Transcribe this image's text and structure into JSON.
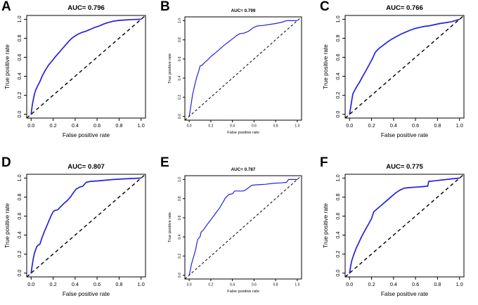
{
  "figure": {
    "background": "#ffffff",
    "curve_color": "#2222e0",
    "diagonal_color": "#000000",
    "axis_color": "#000000"
  },
  "chart_data": [
    {
      "type": "line",
      "panel_label": "A",
      "title": "AUC= 0.796",
      "auc": 0.796,
      "xlabel": "False positive rate",
      "ylabel": "True positive rate",
      "xlim": [
        0,
        1
      ],
      "ylim": [
        0,
        1
      ],
      "xticks": [
        "0.0",
        "0.2",
        "0.4",
        "0.6",
        "0.8",
        "1.0"
      ],
      "yticks": [
        "0.0",
        "0.2",
        "0.4",
        "0.6",
        "0.8",
        "1.0"
      ],
      "grid": false,
      "legend": "none",
      "series": [
        {
          "name": "ROC curve",
          "color": "#2222e0",
          "style": "solid",
          "points": [
            [
              0,
              0
            ],
            [
              0.01,
              0.09
            ],
            [
              0.02,
              0.155
            ],
            [
              0.03,
              0.21
            ],
            [
              0.04,
              0.25
            ],
            [
              0.06,
              0.3
            ],
            [
              0.08,
              0.345
            ],
            [
              0.1,
              0.4
            ],
            [
              0.13,
              0.465
            ],
            [
              0.16,
              0.52
            ],
            [
              0.19,
              0.56
            ],
            [
              0.22,
              0.605
            ],
            [
              0.25,
              0.645
            ],
            [
              0.28,
              0.685
            ],
            [
              0.31,
              0.725
            ],
            [
              0.34,
              0.765
            ],
            [
              0.37,
              0.8
            ],
            [
              0.4,
              0.825
            ],
            [
              0.43,
              0.845
            ],
            [
              0.46,
              0.86
            ],
            [
              0.5,
              0.875
            ],
            [
              0.54,
              0.895
            ],
            [
              0.58,
              0.915
            ],
            [
              0.62,
              0.93
            ],
            [
              0.66,
              0.95
            ],
            [
              0.7,
              0.965
            ],
            [
              0.75,
              0.98
            ],
            [
              0.8,
              0.988
            ],
            [
              0.86,
              0.993
            ],
            [
              0.92,
              0.997
            ],
            [
              1,
              1
            ]
          ]
        },
        {
          "name": "reference diagonal",
          "color": "#000000",
          "style": "dashed",
          "points": [
            [
              0,
              0
            ],
            [
              1,
              1
            ]
          ]
        }
      ]
    },
    {
      "type": "line",
      "panel_label": "B",
      "title": "AUC= 0.799",
      "auc": 0.799,
      "xlabel": "False positive rate",
      "ylabel": "True positive rate",
      "xlim": [
        0,
        1
      ],
      "ylim": [
        0,
        1
      ],
      "xticks": [
        "0.0",
        "0.2",
        "0.4",
        "0.6",
        "0.8",
        "1.0"
      ],
      "yticks": [
        "0.0",
        "0.2",
        "0.4",
        "0.6",
        "0.8",
        "1.0"
      ],
      "grid": false,
      "legend": "none",
      "series": [
        {
          "name": "ROC curve",
          "color": "#2222e0",
          "style": "solid",
          "points": [
            [
              0,
              0
            ],
            [
              0.01,
              0.07
            ],
            [
              0.02,
              0.14
            ],
            [
              0.03,
              0.22
            ],
            [
              0.05,
              0.32
            ],
            [
              0.07,
              0.41
            ],
            [
              0.09,
              0.48
            ],
            [
              0.1,
              0.525
            ],
            [
              0.12,
              0.535
            ],
            [
              0.14,
              0.56
            ],
            [
              0.17,
              0.59
            ],
            [
              0.2,
              0.625
            ],
            [
              0.24,
              0.66
            ],
            [
              0.28,
              0.7
            ],
            [
              0.32,
              0.74
            ],
            [
              0.36,
              0.775
            ],
            [
              0.4,
              0.81
            ],
            [
              0.44,
              0.845
            ],
            [
              0.47,
              0.865
            ],
            [
              0.51,
              0.87
            ],
            [
              0.55,
              0.89
            ],
            [
              0.59,
              0.925
            ],
            [
              0.63,
              0.945
            ],
            [
              0.68,
              0.95
            ],
            [
              0.74,
              0.96
            ],
            [
              0.8,
              0.97
            ],
            [
              0.86,
              0.985
            ],
            [
              0.9,
              1.0
            ],
            [
              1,
              1
            ]
          ]
        },
        {
          "name": "reference diagonal",
          "color": "#000000",
          "style": "dashed",
          "points": [
            [
              0,
              0
            ],
            [
              1,
              1
            ]
          ]
        }
      ]
    },
    {
      "type": "line",
      "panel_label": "C",
      "title": "AUC= 0.766",
      "auc": 0.766,
      "xlabel": "False positive rate",
      "ylabel": "True positive rate",
      "xlim": [
        0,
        1
      ],
      "ylim": [
        0,
        1
      ],
      "xticks": [
        "0.0",
        "0.2",
        "0.4",
        "0.6",
        "0.8",
        "1.0"
      ],
      "yticks": [
        "0.0",
        "0.2",
        "0.4",
        "0.6",
        "0.8",
        "1.0"
      ],
      "grid": false,
      "legend": "none",
      "series": [
        {
          "name": "ROC curve",
          "color": "#2222e0",
          "style": "solid",
          "points": [
            [
              0,
              0
            ],
            [
              0.01,
              0.07
            ],
            [
              0.02,
              0.145
            ],
            [
              0.03,
              0.215
            ],
            [
              0.05,
              0.26
            ],
            [
              0.07,
              0.3
            ],
            [
              0.09,
              0.335
            ],
            [
              0.12,
              0.4
            ],
            [
              0.15,
              0.46
            ],
            [
              0.18,
              0.525
            ],
            [
              0.21,
              0.59
            ],
            [
              0.23,
              0.645
            ],
            [
              0.24,
              0.66
            ],
            [
              0.27,
              0.695
            ],
            [
              0.31,
              0.73
            ],
            [
              0.35,
              0.765
            ],
            [
              0.39,
              0.795
            ],
            [
              0.43,
              0.82
            ],
            [
              0.47,
              0.845
            ],
            [
              0.51,
              0.865
            ],
            [
              0.55,
              0.885
            ],
            [
              0.6,
              0.905
            ],
            [
              0.64,
              0.915
            ],
            [
              0.68,
              0.925
            ],
            [
              0.72,
              0.93
            ],
            [
              0.76,
              0.94
            ],
            [
              0.82,
              0.955
            ],
            [
              0.88,
              0.965
            ],
            [
              0.93,
              0.975
            ],
            [
              1,
              1
            ]
          ]
        },
        {
          "name": "reference diagonal",
          "color": "#000000",
          "style": "dashed",
          "points": [
            [
              0,
              0
            ],
            [
              1,
              1
            ]
          ]
        }
      ]
    },
    {
      "type": "line",
      "panel_label": "D",
      "title": "AUC= 0.807",
      "auc": 0.807,
      "xlabel": "False positive rate",
      "ylabel": "True positive rate",
      "xlim": [
        0,
        1
      ],
      "ylim": [
        0,
        1
      ],
      "xticks": [
        "0.0",
        "0.2",
        "0.4",
        "0.6",
        "0.8",
        "1.0"
      ],
      "yticks": [
        "0.0",
        "0.2",
        "0.4",
        "0.6",
        "0.8",
        "1.0"
      ],
      "grid": false,
      "legend": "none",
      "series": [
        {
          "name": "ROC curve",
          "color": "#2222e0",
          "style": "solid",
          "points": [
            [
              0,
              0
            ],
            [
              0.01,
              0.08
            ],
            [
              0.02,
              0.155
            ],
            [
              0.03,
              0.21
            ],
            [
              0.05,
              0.275
            ],
            [
              0.06,
              0.29
            ],
            [
              0.08,
              0.305
            ],
            [
              0.1,
              0.375
            ],
            [
              0.12,
              0.435
            ],
            [
              0.14,
              0.49
            ],
            [
              0.16,
              0.545
            ],
            [
              0.18,
              0.6
            ],
            [
              0.2,
              0.645
            ],
            [
              0.215,
              0.66
            ],
            [
              0.24,
              0.665
            ],
            [
              0.27,
              0.7
            ],
            [
              0.3,
              0.735
            ],
            [
              0.33,
              0.765
            ],
            [
              0.36,
              0.805
            ],
            [
              0.39,
              0.855
            ],
            [
              0.41,
              0.885
            ],
            [
              0.44,
              0.905
            ],
            [
              0.47,
              0.915
            ],
            [
              0.5,
              0.955
            ],
            [
              0.54,
              0.965
            ],
            [
              0.6,
              0.97
            ],
            [
              0.67,
              0.977
            ],
            [
              0.75,
              0.985
            ],
            [
              0.85,
              0.992
            ],
            [
              1,
              1
            ]
          ]
        },
        {
          "name": "reference diagonal",
          "color": "#000000",
          "style": "dashed",
          "points": [
            [
              0,
              0
            ],
            [
              1,
              1
            ]
          ]
        }
      ]
    },
    {
      "type": "line",
      "panel_label": "E",
      "title": "AUC= 0.787",
      "auc": 0.787,
      "xlabel": "False positive rate",
      "ylabel": "True positive rate",
      "xlim": [
        0,
        1
      ],
      "ylim": [
        0,
        1
      ],
      "xticks": [
        "0.0",
        "0.2",
        "0.4",
        "0.6",
        "0.8",
        "1.0"
      ],
      "yticks": [
        "0.0",
        "0.2",
        "0.4",
        "0.6",
        "0.8",
        "1.0"
      ],
      "grid": false,
      "legend": "none",
      "series": [
        {
          "name": "ROC curve",
          "color": "#2222e0",
          "style": "solid",
          "points": [
            [
              0,
              0
            ],
            [
              0.01,
              0.05
            ],
            [
              0.02,
              0.11
            ],
            [
              0.04,
              0.19
            ],
            [
              0.06,
              0.27
            ],
            [
              0.07,
              0.33
            ],
            [
              0.08,
              0.375
            ],
            [
              0.1,
              0.4
            ],
            [
              0.11,
              0.45
            ],
            [
              0.13,
              0.47
            ],
            [
              0.16,
              0.52
            ],
            [
              0.19,
              0.565
            ],
            [
              0.22,
              0.61
            ],
            [
              0.25,
              0.655
            ],
            [
              0.28,
              0.7
            ],
            [
              0.3,
              0.74
            ],
            [
              0.32,
              0.775
            ],
            [
              0.33,
              0.8
            ],
            [
              0.35,
              0.825
            ],
            [
              0.37,
              0.845
            ],
            [
              0.4,
              0.85
            ],
            [
              0.42,
              0.88
            ],
            [
              0.46,
              0.88
            ],
            [
              0.5,
              0.88
            ],
            [
              0.52,
              0.89
            ],
            [
              0.55,
              0.915
            ],
            [
              0.58,
              0.94
            ],
            [
              0.63,
              0.945
            ],
            [
              0.7,
              0.95
            ],
            [
              0.78,
              0.96
            ],
            [
              0.85,
              0.965
            ],
            [
              0.9,
              0.97
            ],
            [
              0.92,
              1.0
            ],
            [
              1,
              1
            ]
          ]
        },
        {
          "name": "reference diagonal",
          "color": "#000000",
          "style": "dashed",
          "points": [
            [
              0,
              0
            ],
            [
              1,
              1
            ]
          ]
        }
      ]
    },
    {
      "type": "line",
      "panel_label": "F",
      "title": "AUC= 0.775",
      "auc": 0.775,
      "xlabel": "False positive rate",
      "ylabel": "True positive rate",
      "xlim": [
        0,
        1
      ],
      "ylim": [
        0,
        1
      ],
      "xticks": [
        "0.0",
        "0.2",
        "0.4",
        "0.6",
        "0.8",
        "1.0"
      ],
      "yticks": [
        "0.0",
        "0.2",
        "0.4",
        "0.6",
        "0.8",
        "1.0"
      ],
      "grid": false,
      "legend": "none",
      "series": [
        {
          "name": "ROC curve",
          "color": "#2222e0",
          "style": "solid",
          "points": [
            [
              0,
              0
            ],
            [
              0.01,
              0.07
            ],
            [
              0.02,
              0.13
            ],
            [
              0.04,
              0.2
            ],
            [
              0.06,
              0.26
            ],
            [
              0.08,
              0.31
            ],
            [
              0.11,
              0.385
            ],
            [
              0.14,
              0.45
            ],
            [
              0.17,
              0.51
            ],
            [
              0.2,
              0.575
            ],
            [
              0.22,
              0.645
            ],
            [
              0.23,
              0.655
            ],
            [
              0.26,
              0.685
            ],
            [
              0.3,
              0.725
            ],
            [
              0.34,
              0.765
            ],
            [
              0.38,
              0.805
            ],
            [
              0.42,
              0.845
            ],
            [
              0.46,
              0.875
            ],
            [
              0.5,
              0.895
            ],
            [
              0.55,
              0.9
            ],
            [
              0.6,
              0.905
            ],
            [
              0.66,
              0.91
            ],
            [
              0.71,
              0.915
            ],
            [
              0.72,
              0.965
            ],
            [
              0.78,
              0.972
            ],
            [
              0.84,
              0.98
            ],
            [
              0.9,
              0.988
            ],
            [
              1,
              1
            ]
          ]
        },
        {
          "name": "reference diagonal",
          "color": "#000000",
          "style": "dashed",
          "points": [
            [
              0,
              0
            ],
            [
              1,
              1
            ]
          ]
        }
      ]
    }
  ]
}
